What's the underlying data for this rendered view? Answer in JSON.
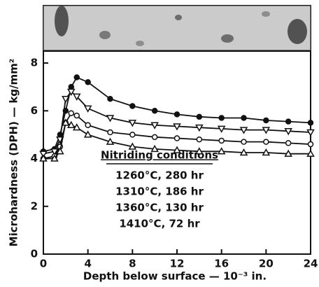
{
  "chart_data": {
    "type": "line",
    "xlabel": "Depth below surface — 10⁻³ in.",
    "ylabel": "Microhardness (DPH) — kg/mm²",
    "legend_title": "Nitriding conditions",
    "x": [
      0,
      1,
      1.5,
      2,
      2.5,
      3,
      4,
      6,
      8,
      10,
      12,
      14,
      16,
      18,
      20,
      22,
      24
    ],
    "xlim": [
      0,
      24
    ],
    "xticks": [
      0,
      4,
      8,
      12,
      16,
      20,
      24
    ],
    "ylim": [
      0,
      8.5
    ],
    "yticks": [
      0,
      2,
      4,
      6,
      8
    ],
    "series": [
      {
        "name": "1260°C, 280 hr",
        "color": "#111111",
        "marker": "filled-circle",
        "values": [
          4.3,
          4.4,
          5.0,
          6.0,
          7.0,
          7.4,
          7.2,
          6.5,
          6.2,
          6.0,
          5.85,
          5.75,
          5.7,
          5.7,
          5.6,
          5.55,
          5.5
        ]
      },
      {
        "name": "1310°C, 186 hr",
        "color": "#111111",
        "marker": "inverted-triangle",
        "values": [
          4.2,
          4.3,
          4.8,
          6.5,
          6.8,
          6.6,
          6.1,
          5.7,
          5.5,
          5.4,
          5.35,
          5.3,
          5.25,
          5.2,
          5.2,
          5.15,
          5.1
        ]
      },
      {
        "name": "1360°C, 130 hr",
        "color": "#111111",
        "marker": "circle",
        "values": [
          4.0,
          4.1,
          4.5,
          5.5,
          5.9,
          5.8,
          5.4,
          5.1,
          5.0,
          4.9,
          4.85,
          4.8,
          4.75,
          4.7,
          4.7,
          4.65,
          4.6
        ]
      },
      {
        "name": "1410°C,  72 hr",
        "color": "#111111",
        "marker": "triangle",
        "values": [
          4.0,
          4.0,
          4.3,
          5.5,
          5.4,
          5.3,
          5.0,
          4.7,
          4.5,
          4.4,
          4.35,
          4.3,
          4.3,
          4.25,
          4.25,
          4.2,
          4.2
        ]
      }
    ]
  }
}
